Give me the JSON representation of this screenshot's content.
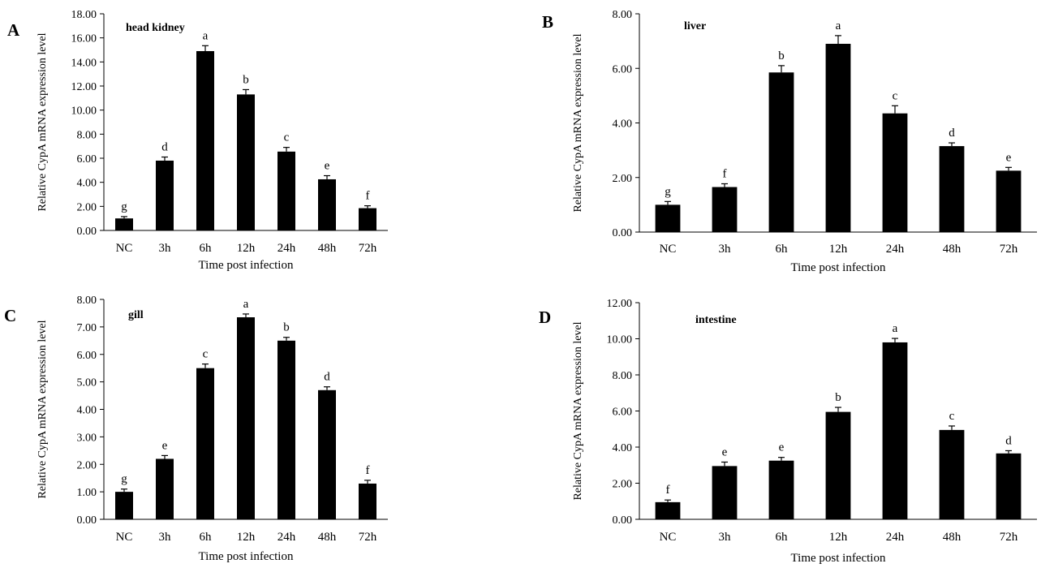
{
  "chart_data": [
    {
      "panel": "A",
      "type": "bar",
      "title": "head kidney",
      "xlabel": "Time post infection",
      "ylabel": "Relative  CypA mRNA expression level",
      "categories": [
        "NC",
        "3h",
        "6h",
        "12h",
        "24h",
        "48h",
        "72h"
      ],
      "values": [
        1.0,
        5.8,
        14.9,
        11.3,
        6.55,
        4.25,
        1.85
      ],
      "errors": [
        0.15,
        0.3,
        0.45,
        0.4,
        0.35,
        0.3,
        0.2
      ],
      "letters": [
        "g",
        "d",
        "a",
        "b",
        "c",
        "e",
        "f"
      ],
      "ylim": [
        0,
        18
      ],
      "yticks": [
        "0.00",
        "2.00",
        "4.00",
        "6.00",
        "8.00",
        "10.00",
        "12.00",
        "14.00",
        "16.00",
        "18.00"
      ],
      "bar_color": "#000000"
    },
    {
      "panel": "B",
      "type": "bar",
      "title": "liver",
      "xlabel": "Time post infection",
      "ylabel": "Relative  CypA mRNA expression level",
      "categories": [
        "NC",
        "3h",
        "6h",
        "12h",
        "24h",
        "48h",
        "72h"
      ],
      "values": [
        1.0,
        1.65,
        5.85,
        6.9,
        4.35,
        3.15,
        2.25
      ],
      "errors": [
        0.12,
        0.12,
        0.25,
        0.3,
        0.28,
        0.12,
        0.12
      ],
      "letters": [
        "g",
        "f",
        "b",
        "a",
        "c",
        "d",
        "e"
      ],
      "ylim": [
        0,
        8
      ],
      "yticks": [
        "0.00",
        "2.00",
        "4.00",
        "6.00",
        "8.00"
      ],
      "bar_color": "#000000"
    },
    {
      "panel": "C",
      "type": "bar",
      "title": "gill",
      "xlabel": "Time post infection",
      "ylabel": "Relative  CypA mRNA expression level",
      "categories": [
        "NC",
        "3h",
        "6h",
        "12h",
        "24h",
        "48h",
        "72h"
      ],
      "values": [
        1.0,
        2.2,
        5.5,
        7.35,
        6.5,
        4.7,
        1.3
      ],
      "errors": [
        0.1,
        0.12,
        0.15,
        0.12,
        0.12,
        0.12,
        0.12
      ],
      "letters": [
        "g",
        "e",
        "c",
        "a",
        "b",
        "d",
        "f"
      ],
      "ylim": [
        0,
        8
      ],
      "yticks": [
        "0.00",
        "1.00",
        "2.00",
        "3.00",
        "4.00",
        "5.00",
        "6.00",
        "7.00",
        "8.00"
      ],
      "bar_color": "#000000"
    },
    {
      "panel": "D",
      "type": "bar",
      "title": "intestine",
      "xlabel": "Time post infection",
      "ylabel": "Relative  CypA mRNA expression level",
      "categories": [
        "NC",
        "3h",
        "6h",
        "12h",
        "24h",
        "48h",
        "72h"
      ],
      "values": [
        0.95,
        2.95,
        3.25,
        5.95,
        9.8,
        4.95,
        3.65
      ],
      "errors": [
        0.12,
        0.22,
        0.18,
        0.25,
        0.22,
        0.22,
        0.15
      ],
      "letters": [
        "f",
        "e",
        "e",
        "b",
        "a",
        "c",
        "d"
      ],
      "ylim": [
        0,
        12
      ],
      "yticks": [
        "0.00",
        "2.00",
        "4.00",
        "6.00",
        "8.00",
        "10.00",
        "12.00"
      ],
      "bar_color": "#000000"
    }
  ]
}
